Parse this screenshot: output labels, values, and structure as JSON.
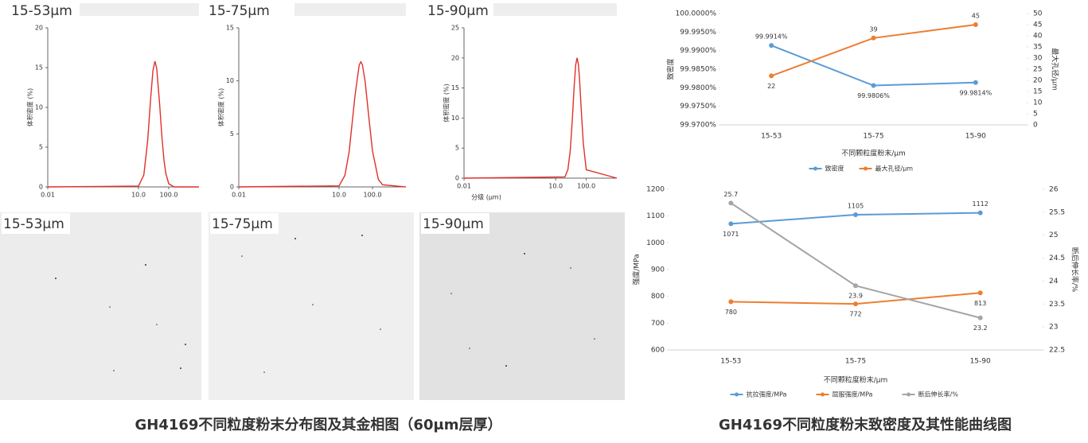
{
  "chart_data": [
    {
      "type": "line",
      "title": "15-53μm",
      "y_label": "体积密度 (%)",
      "xscale": "log",
      "x": [
        0.01,
        10,
        15,
        20,
        25,
        30,
        35,
        40,
        50,
        60,
        70,
        80,
        100,
        150,
        1000
      ],
      "series": [
        {
          "color": "#e0302a",
          "values": [
            0,
            0.1,
            1.5,
            5.7,
            10.9,
            14.6,
            15.8,
            14.9,
            10.4,
            6.1,
            3.3,
            1.7,
            0.4,
            0,
            0
          ]
        }
      ],
      "xlim": [
        0.01,
        1000
      ],
      "xticks": [
        0.01,
        {
          "value": 10,
          "label": "10.0"
        },
        {
          "value": 100,
          "label": "100.0"
        }
      ],
      "ylim": [
        0,
        20
      ],
      "yticks": [
        0,
        5,
        10,
        15,
        20
      ]
    },
    {
      "type": "line",
      "title": "15-75μm",
      "y_label": "体积密度 (%)",
      "xscale": "log",
      "x": [
        0.01,
        10,
        15,
        20,
        30,
        40,
        45,
        50,
        60,
        80,
        100,
        150,
        200,
        1000
      ],
      "series": [
        {
          "color": "#e0302a",
          "values": [
            0,
            0.1,
            1.1,
            3.3,
            8.6,
            11.5,
            11.8,
            11.5,
            10.0,
            6.2,
            3.4,
            0.7,
            0.2,
            0
          ]
        }
      ],
      "xlim": [
        0.01,
        1000
      ],
      "xticks": [
        0.01,
        {
          "value": 10,
          "label": "10.0"
        },
        {
          "value": 100,
          "label": "100.0"
        }
      ],
      "ylim": [
        0,
        15
      ],
      "yticks": [
        0,
        5,
        10,
        15
      ]
    },
    {
      "type": "line",
      "title": "15-90μm",
      "y_label": "体积密度 (%)",
      "x_label": "分级 (μm)",
      "xscale": "log",
      "x": [
        0.01,
        20,
        25,
        30,
        35,
        40,
        45,
        50,
        55,
        60,
        70,
        80,
        100,
        1000
      ],
      "series": [
        {
          "color": "#e0302a",
          "values": [
            0,
            0.2,
            1.4,
            4.6,
            9.8,
            15.1,
            18.8,
            20,
            19.0,
            16.6,
            10.6,
            5.8,
            1.4,
            0
          ]
        }
      ],
      "xlim": [
        0.01,
        1000
      ],
      "xticks": [
        0.01,
        {
          "value": 10,
          "label": "10.0"
        },
        {
          "value": 100,
          "label": "100.0"
        }
      ],
      "ylim": [
        0,
        25
      ],
      "yticks": [
        0,
        5,
        10,
        15,
        20,
        25
      ]
    },
    {
      "type": "line",
      "categories": [
        "15-53",
        "15-75",
        "15-90"
      ],
      "x_label": "不同颗粒度粉末/μm",
      "y_label": "致密度",
      "y2_label": "最大孔径/μm",
      "series": [
        {
          "name": "致密度",
          "color": "#5b9bd5",
          "values": [
            99.9914,
            99.9806,
            99.9814
          ],
          "value_labels": [
            "99.9914%",
            "99.9806%",
            "99.9814%"
          ]
        },
        {
          "name": "最大孔径/μm",
          "color": "#ed7d31",
          "axis": "y2",
          "values": [
            22,
            39,
            45
          ]
        }
      ],
      "ylim": [
        99.97,
        100
      ],
      "yticks": [
        {
          "value": 99.97,
          "label": "99.9700%"
        },
        {
          "value": 99.975,
          "label": "99.9750%"
        },
        {
          "value": 99.98,
          "label": "99.9800%"
        },
        {
          "value": 99.985,
          "label": "99.9850%"
        },
        {
          "value": 99.99,
          "label": "99.9900%"
        },
        {
          "value": 99.995,
          "label": "99.9950%"
        },
        {
          "value": 100,
          "label": "100.0000%"
        }
      ],
      "y2lim": [
        0,
        50
      ],
      "y2ticks": [
        0,
        5,
        10,
        15,
        20,
        25,
        30,
        35,
        40,
        45,
        50
      ],
      "legend": "bottom"
    },
    {
      "type": "line",
      "categories": [
        "15-53",
        "15-75",
        "15-90"
      ],
      "x_label": "不同颗粒度粉末/μm",
      "y_label": "强度/MPa",
      "y2_label": "断后伸长率/%",
      "series": [
        {
          "name": "抗拉强度/MPa",
          "color": "#5b9bd5",
          "values": [
            1071,
            1105,
            1112
          ]
        },
        {
          "name": "屈服强度/MPa",
          "color": "#ed7d31",
          "values": [
            780,
            772,
            813
          ]
        },
        {
          "name": "断后伸长率/%",
          "color": "#a5a5a5",
          "axis": "y2",
          "values": [
            25.7,
            23.9,
            23.2
          ]
        }
      ],
      "ylim": [
        600,
        1200
      ],
      "yticks": [
        600,
        700,
        800,
        900,
        1000,
        1100,
        1200
      ],
      "y2lim": [
        22.5,
        26
      ],
      "y2ticks": [
        22.5,
        23,
        23.5,
        24,
        24.5,
        25,
        25.5,
        26
      ],
      "legend": "bottom"
    }
  ],
  "micrographs": [
    {
      "label": "15-53μm"
    },
    {
      "label": "15-75μm"
    },
    {
      "label": "15-90μm"
    }
  ],
  "captions": [
    "GH4169不同粒度粉末分布图及其金相图（60μm层厚）",
    "GH4169不同粒度粉末致密度及其性能曲线图"
  ]
}
